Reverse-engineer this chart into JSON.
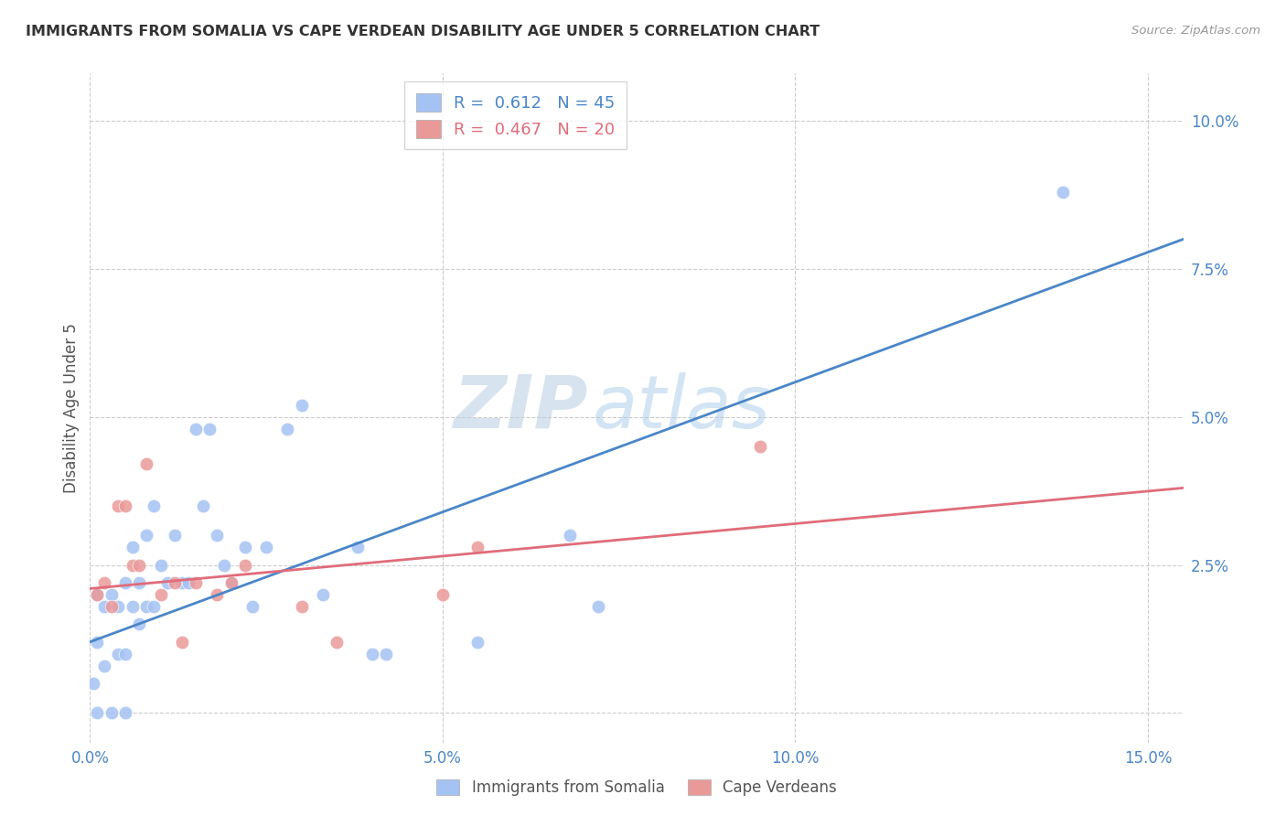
{
  "title": "IMMIGRANTS FROM SOMALIA VS CAPE VERDEAN DISABILITY AGE UNDER 5 CORRELATION CHART",
  "source": "Source: ZipAtlas.com",
  "ylabel": "Disability Age Under 5",
  "xlim": [
    0.0,
    0.155
  ],
  "ylim": [
    -0.005,
    0.108
  ],
  "ytick_positions": [
    0.0,
    0.025,
    0.05,
    0.075,
    0.1
  ],
  "ytick_labels": [
    "",
    "2.5%",
    "5.0%",
    "7.5%",
    "10.0%"
  ],
  "xtick_positions": [
    0.0,
    0.05,
    0.1,
    0.15
  ],
  "xtick_labels": [
    "0.0%",
    "5.0%",
    "10.0%",
    "15.0%"
  ],
  "somalia_color": "#a4c2f4",
  "cape_verde_color": "#ea9999",
  "somalia_line_color": "#4a86c8",
  "cape_verde_line_color": "#e06c7a",
  "legend_R1": "R =  0.612",
  "legend_N1": "N = 45",
  "legend_R2": "R =  0.467",
  "legend_N2": "N = 20",
  "watermark_zip": "ZIP",
  "watermark_atlas": "atlas",
  "somalia_x": [
    0.0005,
    0.001,
    0.001,
    0.001,
    0.002,
    0.002,
    0.003,
    0.003,
    0.004,
    0.004,
    0.005,
    0.005,
    0.005,
    0.006,
    0.006,
    0.007,
    0.007,
    0.008,
    0.008,
    0.009,
    0.009,
    0.01,
    0.011,
    0.012,
    0.013,
    0.014,
    0.015,
    0.016,
    0.017,
    0.018,
    0.019,
    0.02,
    0.022,
    0.023,
    0.025,
    0.028,
    0.03,
    0.033,
    0.038,
    0.04,
    0.042,
    0.055,
    0.068,
    0.072,
    0.138
  ],
  "somalia_y": [
    0.005,
    0.0,
    0.012,
    0.02,
    0.008,
    0.018,
    0.0,
    0.02,
    0.01,
    0.018,
    0.0,
    0.01,
    0.022,
    0.018,
    0.028,
    0.015,
    0.022,
    0.018,
    0.03,
    0.018,
    0.035,
    0.025,
    0.022,
    0.03,
    0.022,
    0.022,
    0.048,
    0.035,
    0.048,
    0.03,
    0.025,
    0.022,
    0.028,
    0.018,
    0.028,
    0.048,
    0.052,
    0.02,
    0.028,
    0.01,
    0.01,
    0.012,
    0.03,
    0.018,
    0.088
  ],
  "cape_verde_x": [
    0.001,
    0.002,
    0.003,
    0.004,
    0.005,
    0.006,
    0.007,
    0.008,
    0.01,
    0.012,
    0.013,
    0.015,
    0.018,
    0.02,
    0.022,
    0.03,
    0.035,
    0.05,
    0.055,
    0.095
  ],
  "cape_verde_y": [
    0.02,
    0.022,
    0.018,
    0.035,
    0.035,
    0.025,
    0.025,
    0.042,
    0.02,
    0.022,
    0.012,
    0.022,
    0.02,
    0.022,
    0.025,
    0.018,
    0.012,
    0.02,
    0.028,
    0.045
  ],
  "somalia_trend_x": [
    0.0,
    0.155
  ],
  "somalia_trend_y": [
    0.012,
    0.08
  ],
  "cape_verde_trend_x": [
    0.0,
    0.155
  ],
  "cape_verde_trend_y": [
    0.021,
    0.038
  ]
}
